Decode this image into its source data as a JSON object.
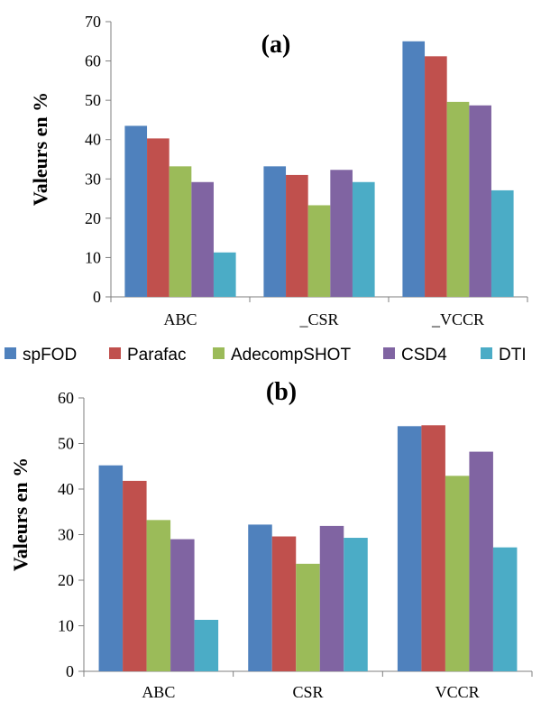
{
  "series_colors": [
    "#4f81bd",
    "#c0504d",
    "#9bbb59",
    "#8064a2",
    "#4bacc6"
  ],
  "legend": {
    "entries": [
      "spFOD",
      "Parafac",
      "AdecompSHOT",
      "CSD4",
      "DTI"
    ]
  },
  "chart_data": [
    {
      "type": "bar",
      "title": "(a)",
      "ylabel": "Valeurs en %",
      "xlabel": "",
      "ylim": [
        0,
        70
      ],
      "yticks": [
        0,
        10,
        20,
        30,
        40,
        50,
        60,
        70
      ],
      "grid": false,
      "categories": [
        "ABC",
        "_CSR",
        "_VCCR"
      ],
      "series": [
        {
          "name": "spFOD",
          "values": [
            43.5,
            33.2,
            65.0
          ]
        },
        {
          "name": "Parafac",
          "values": [
            40.3,
            31.0,
            61.2
          ]
        },
        {
          "name": "AdecompSHOT",
          "values": [
            33.2,
            23.3,
            49.6
          ]
        },
        {
          "name": "CSD4",
          "values": [
            29.2,
            32.3,
            48.7
          ]
        },
        {
          "name": "DTI",
          "values": [
            11.3,
            29.2,
            27.1
          ]
        }
      ]
    },
    {
      "type": "bar",
      "title": "(b)",
      "ylabel": "Valeurs en %",
      "xlabel": "",
      "ylim": [
        0,
        60
      ],
      "yticks": [
        0,
        10,
        20,
        30,
        40,
        50,
        60
      ],
      "grid": false,
      "categories": [
        "ABC",
        "CSR",
        "VCCR"
      ],
      "series": [
        {
          "name": "spFOD",
          "values": [
            45.2,
            32.2,
            53.8
          ]
        },
        {
          "name": "Parafac",
          "values": [
            41.8,
            29.6,
            54.0
          ]
        },
        {
          "name": "AdecompSHOT",
          "values": [
            33.2,
            23.6,
            42.9
          ]
        },
        {
          "name": "CSD4",
          "values": [
            29.0,
            31.9,
            48.2
          ]
        },
        {
          "name": "DTI",
          "values": [
            11.3,
            29.3,
            27.2
          ]
        }
      ]
    }
  ]
}
